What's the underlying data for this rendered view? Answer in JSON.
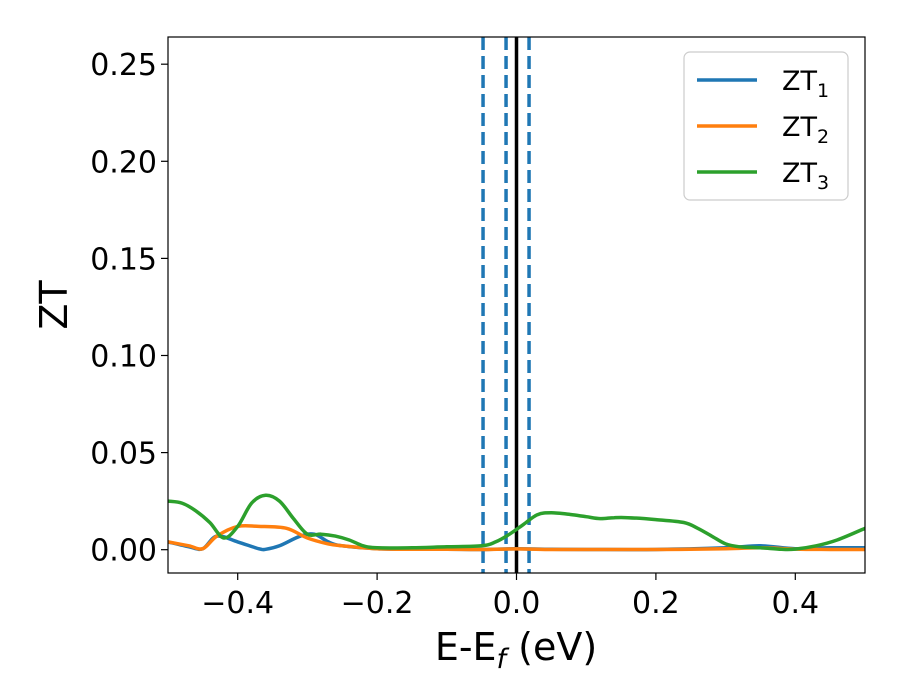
{
  "chart_data": {
    "type": "line",
    "title": "",
    "xlabel": {
      "main": "E-E",
      "sub": "f",
      "unit": " (eV)"
    },
    "ylabel": "ZT",
    "xlim": [
      -0.5,
      0.5
    ],
    "ylim": [
      -0.012,
      0.264
    ],
    "xticks": [
      -0.4,
      -0.2,
      0.0,
      0.2,
      0.4
    ],
    "xtick_labels": [
      "−0.4",
      "−0.2",
      "0.0",
      "0.2",
      "0.4"
    ],
    "yticks": [
      0.0,
      0.05,
      0.1,
      0.15,
      0.2,
      0.25
    ],
    "ytick_labels": [
      "0.00",
      "0.05",
      "0.10",
      "0.15",
      "0.20",
      "0.25"
    ],
    "grid": false,
    "legend_position": "top-right",
    "vlines": [
      {
        "x": -0.048,
        "style": "dashed",
        "color": "#1f77b4"
      },
      {
        "x": -0.015,
        "style": "dashed",
        "color": "#1f77b4"
      },
      {
        "x": 0.018,
        "style": "dashed",
        "color": "#1f77b4"
      },
      {
        "x": 0.0,
        "style": "solid",
        "color": "#000000"
      }
    ],
    "series": [
      {
        "name": "ZT",
        "sub": "1",
        "color": "#1f77b4",
        "x": [
          -0.5,
          -0.47,
          -0.45,
          -0.43,
          -0.4,
          -0.37,
          -0.36,
          -0.34,
          -0.31,
          -0.29,
          -0.27,
          -0.25,
          -0.2,
          -0.15,
          -0.1,
          -0.05,
          0.0,
          0.05,
          0.1,
          0.2,
          0.3,
          0.35,
          0.4,
          0.45,
          0.5
        ],
        "y": [
          0.004,
          0.0015,
          0.0005,
          0.007,
          0.004,
          0.0005,
          0.0002,
          0.002,
          0.007,
          0.008,
          0.004,
          0.002,
          0.0005,
          0.0002,
          0.0002,
          0.0001,
          0.0005,
          0.0002,
          0.0001,
          0.0001,
          0.001,
          0.002,
          0.0005,
          0.001,
          0.001
        ]
      },
      {
        "name": "ZT",
        "sub": "2",
        "color": "#ff7f0e",
        "x": [
          -0.5,
          -0.47,
          -0.45,
          -0.43,
          -0.4,
          -0.37,
          -0.33,
          -0.3,
          -0.27,
          -0.25,
          -0.2,
          -0.15,
          -0.1,
          -0.05,
          0.0,
          0.05,
          0.1,
          0.2,
          0.3,
          0.35,
          0.4,
          0.45,
          0.5
        ],
        "y": [
          0.004,
          0.002,
          0.0005,
          0.007,
          0.012,
          0.012,
          0.011,
          0.006,
          0.003,
          0.002,
          0.0005,
          0.0002,
          0.0002,
          0.0001,
          0.0004,
          0.0001,
          0.0001,
          0.0001,
          0.0005,
          0.001,
          0.0003,
          0.0001,
          0.0001
        ]
      },
      {
        "name": "ZT",
        "sub": "3",
        "color": "#2ca02c",
        "x": [
          -0.5,
          -0.48,
          -0.46,
          -0.44,
          -0.42,
          -0.4,
          -0.38,
          -0.36,
          -0.34,
          -0.32,
          -0.3,
          -0.28,
          -0.26,
          -0.24,
          -0.22,
          -0.2,
          -0.15,
          -0.1,
          -0.05,
          -0.03,
          -0.01,
          0.01,
          0.03,
          0.05,
          0.08,
          0.1,
          0.12,
          0.14,
          0.16,
          0.2,
          0.24,
          0.26,
          0.28,
          0.3,
          0.32,
          0.35,
          0.38,
          0.4,
          0.43,
          0.46,
          0.5
        ],
        "y": [
          0.025,
          0.024,
          0.02,
          0.014,
          0.006,
          0.012,
          0.024,
          0.028,
          0.025,
          0.016,
          0.008,
          0.008,
          0.007,
          0.005,
          0.002,
          0.001,
          0.001,
          0.0015,
          0.002,
          0.004,
          0.008,
          0.013,
          0.018,
          0.019,
          0.018,
          0.017,
          0.016,
          0.0165,
          0.0165,
          0.0155,
          0.014,
          0.011,
          0.007,
          0.003,
          0.0015,
          0.001,
          0.0002,
          0.0003,
          0.002,
          0.005,
          0.011
        ]
      }
    ]
  }
}
